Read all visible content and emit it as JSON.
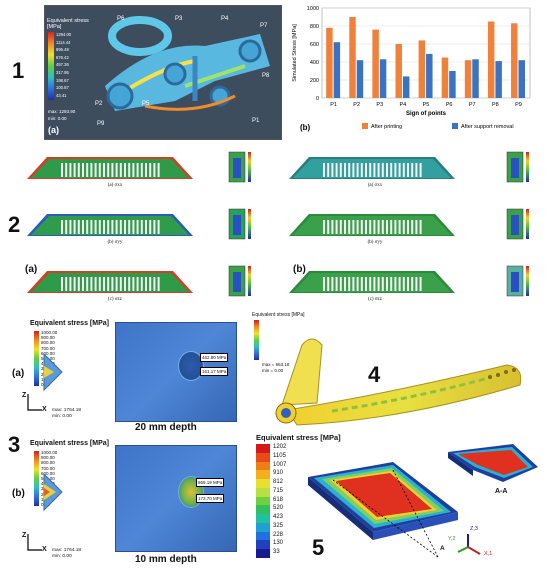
{
  "panel1": {
    "num": "1",
    "colorbar_title": "Equivalent stress [MPa]",
    "colorbar_ticks": [
      "1294.00",
      "1114.44",
      "895.48",
      "676.42",
      "457.36",
      "317.95",
      "198.67",
      "100.87",
      "43.41"
    ],
    "max_label": "max: 1293.90",
    "min_label": "min: 0.00",
    "sub_a": "(a)",
    "point_labels": [
      "P6",
      "P3",
      "P4",
      "P7",
      "P8",
      "P2",
      "P5",
      "P1",
      "P9"
    ]
  },
  "panel1b": {
    "sub_b": "(b)",
    "chart_data": {
      "type": "bar",
      "categories": [
        "P1",
        "P2",
        "P3",
        "P4",
        "P5",
        "P6",
        "P7",
        "P8",
        "P9"
      ],
      "series": [
        {
          "name": "After printing",
          "values": [
            780,
            900,
            760,
            600,
            640,
            450,
            420,
            850,
            830
          ],
          "color": "#f0813a"
        },
        {
          "name": "After support removal",
          "values": [
            620,
            420,
            430,
            240,
            490,
            300,
            430,
            410,
            420
          ],
          "color": "#3b73c4"
        }
      ],
      "ylabel": "Simulated Stress [MPa]",
      "xlabel": "Sign of points",
      "yticks": [
        "0",
        "200",
        "400",
        "600",
        "800",
        "1000"
      ],
      "ylim": [
        0,
        1000
      ]
    }
  },
  "panel2": {
    "num": "2",
    "left_caps": [
      "(a) σxx",
      "(b) σyy",
      "(c) σzz"
    ],
    "right_caps": [
      "(a) σxx",
      "(b) σyy",
      "(c) σzz"
    ],
    "sub_a": "(a)",
    "sub_b": "(b)"
  },
  "panel3": {
    "num": "3",
    "top": {
      "sub": "(a)",
      "cb_title": "Equivalent stress [MPa]",
      "ticks": [
        "1000.00",
        "900.00",
        "800.00",
        "700.00",
        "600.00",
        "500.00",
        "400.00",
        "300.00",
        "200.00",
        "100.00",
        "0.00"
      ],
      "max": "max: 1764.18",
      "min": "min: 0.00",
      "call1": "462.80 MPa",
      "call2": "161.17 MPa",
      "depth": "20 mm depth"
    },
    "bottom": {
      "sub": "(b)",
      "cb_title": "Equivalent stress [MPa]",
      "ticks": [
        "1000.00",
        "900.00",
        "800.00",
        "700.00",
        "600.00",
        "500.00",
        "400.00",
        "300.00",
        "200.00",
        "100.00",
        "0.00"
      ],
      "max": "max: 1764.18",
      "min": "min: 0.00",
      "call1": "869.19 MPa",
      "call2": "173.70 MPa",
      "depth": "10 mm depth"
    },
    "axis_z": "Z",
    "axis_x": "X"
  },
  "panel4": {
    "num": "4",
    "cb_title": "Equivalent stress [MPa]",
    "max": "max = 663.18",
    "min": "min = 0.00"
  },
  "panel5": {
    "num": "5",
    "cb_title": "Equivalent stress [MPa]",
    "ticks": [
      "1202",
      "1105",
      "1007",
      "910",
      "812",
      "715",
      "618",
      "520",
      "423",
      "325",
      "228",
      "130",
      "33"
    ],
    "section": "A-A",
    "label_a": "A",
    "axis_y": "Y,2",
    "axis_z": "Z,3",
    "axis_x": "X,1"
  }
}
